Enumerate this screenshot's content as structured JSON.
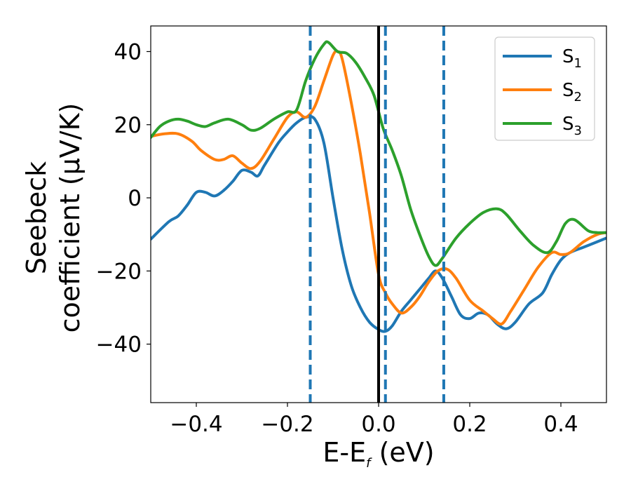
{
  "chart_data": {
    "type": "line",
    "xlabel": {
      "main": "E-E",
      "sub": "f",
      "unit": " (eV)"
    },
    "ylabel": {
      "line1": "Seebeck",
      "line2": "coefficient  (μV/K)"
    },
    "xlim": [
      -0.5,
      0.5
    ],
    "ylim": [
      -56,
      47
    ],
    "xticks": [
      -0.4,
      -0.2,
      0.0,
      0.2,
      0.4
    ],
    "xtick_labels": [
      "−0.4",
      "−0.2",
      "0.0",
      "0.2",
      "0.4"
    ],
    "yticks": [
      -40,
      -20,
      0,
      20,
      40
    ],
    "ytick_labels": [
      "−40",
      "−20",
      "0",
      "20",
      "40"
    ],
    "grid": false,
    "legend_position": "top-right",
    "reference_lines": {
      "solid_black_x": 0.0,
      "dashed_blue_x": [
        -0.15,
        0.015,
        0.143
      ]
    },
    "series": [
      {
        "name": "S",
        "subscript": "1",
        "color": "#1f77b4",
        "points": [
          [
            -0.5,
            -11.3
          ],
          [
            -0.46,
            -6.5
          ],
          [
            -0.44,
            -5
          ],
          [
            -0.42,
            -2
          ],
          [
            -0.4,
            1.5
          ],
          [
            -0.38,
            1.5
          ],
          [
            -0.36,
            0.5
          ],
          [
            -0.34,
            2
          ],
          [
            -0.32,
            4.5
          ],
          [
            -0.3,
            7.5
          ],
          [
            -0.28,
            7
          ],
          [
            -0.265,
            6
          ],
          [
            -0.25,
            9
          ],
          [
            -0.22,
            15
          ],
          [
            -0.2,
            18
          ],
          [
            -0.18,
            20.5
          ],
          [
            -0.16,
            22
          ],
          [
            -0.14,
            21.5
          ],
          [
            -0.12,
            15
          ],
          [
            -0.1,
            0
          ],
          [
            -0.08,
            -14
          ],
          [
            -0.06,
            -24
          ],
          [
            -0.04,
            -30
          ],
          [
            -0.02,
            -34
          ],
          [
            0,
            -36
          ],
          [
            0.015,
            -36.5
          ],
          [
            0.03,
            -35
          ],
          [
            0.05,
            -31
          ],
          [
            0.07,
            -28
          ],
          [
            0.09,
            -25
          ],
          [
            0.11,
            -22
          ],
          [
            0.125,
            -20
          ],
          [
            0.14,
            -22
          ],
          [
            0.16,
            -27
          ],
          [
            0.18,
            -32
          ],
          [
            0.2,
            -33
          ],
          [
            0.22,
            -31.5
          ],
          [
            0.24,
            -32
          ],
          [
            0.26,
            -34.5
          ],
          [
            0.28,
            -35.8
          ],
          [
            0.3,
            -34
          ],
          [
            0.33,
            -29
          ],
          [
            0.36,
            -26
          ],
          [
            0.38,
            -21
          ],
          [
            0.4,
            -17
          ],
          [
            0.42,
            -15
          ],
          [
            0.45,
            -13.5
          ],
          [
            0.48,
            -12
          ],
          [
            0.5,
            -11
          ]
        ]
      },
      {
        "name": "S",
        "subscript": "2",
        "color": "#ff7f0e",
        "points": [
          [
            -0.5,
            16.8
          ],
          [
            -0.47,
            17.5
          ],
          [
            -0.44,
            17.5
          ],
          [
            -0.41,
            15.5
          ],
          [
            -0.39,
            13
          ],
          [
            -0.36,
            10.5
          ],
          [
            -0.34,
            10.5
          ],
          [
            -0.32,
            11.5
          ],
          [
            -0.3,
            9.5
          ],
          [
            -0.28,
            8
          ],
          [
            -0.26,
            10
          ],
          [
            -0.23,
            16
          ],
          [
            -0.2,
            22
          ],
          [
            -0.18,
            23.5
          ],
          [
            -0.16,
            22
          ],
          [
            -0.14,
            25
          ],
          [
            -0.12,
            32
          ],
          [
            -0.1,
            39
          ],
          [
            -0.09,
            40
          ],
          [
            -0.08,
            38
          ],
          [
            -0.06,
            26
          ],
          [
            -0.04,
            12
          ],
          [
            -0.02,
            -4
          ],
          [
            0,
            -21
          ],
          [
            0.015,
            -26
          ],
          [
            0.03,
            -29
          ],
          [
            0.05,
            -31.5
          ],
          [
            0.07,
            -30
          ],
          [
            0.09,
            -27
          ],
          [
            0.11,
            -23
          ],
          [
            0.13,
            -20
          ],
          [
            0.15,
            -19.5
          ],
          [
            0.17,
            -22
          ],
          [
            0.2,
            -28
          ],
          [
            0.23,
            -31
          ],
          [
            0.25,
            -33
          ],
          [
            0.27,
            -34.5
          ],
          [
            0.29,
            -31
          ],
          [
            0.32,
            -25
          ],
          [
            0.35,
            -19
          ],
          [
            0.38,
            -15
          ],
          [
            0.4,
            -15.5
          ],
          [
            0.42,
            -15
          ],
          [
            0.45,
            -12
          ],
          [
            0.48,
            -10
          ],
          [
            0.5,
            -9.5
          ]
        ]
      },
      {
        "name": "S",
        "subscript": "3",
        "color": "#2ca02c",
        "points": [
          [
            -0.5,
            16.5
          ],
          [
            -0.48,
            19.5
          ],
          [
            -0.46,
            21
          ],
          [
            -0.44,
            21.5
          ],
          [
            -0.42,
            21
          ],
          [
            -0.4,
            20
          ],
          [
            -0.38,
            19.5
          ],
          [
            -0.36,
            20.5
          ],
          [
            -0.33,
            21.5
          ],
          [
            -0.3,
            20
          ],
          [
            -0.28,
            18.5
          ],
          [
            -0.26,
            19
          ],
          [
            -0.23,
            21.5
          ],
          [
            -0.2,
            23.5
          ],
          [
            -0.18,
            24
          ],
          [
            -0.16,
            32
          ],
          [
            -0.14,
            38
          ],
          [
            -0.12,
            42
          ],
          [
            -0.11,
            42.5
          ],
          [
            -0.09,
            40
          ],
          [
            -0.07,
            39.5
          ],
          [
            -0.05,
            37
          ],
          [
            -0.03,
            33
          ],
          [
            -0.01,
            28
          ],
          [
            0.01,
            19
          ],
          [
            0.03,
            13
          ],
          [
            0.05,
            6
          ],
          [
            0.07,
            -3
          ],
          [
            0.09,
            -10
          ],
          [
            0.11,
            -16
          ],
          [
            0.125,
            -18.5
          ],
          [
            0.14,
            -16.5
          ],
          [
            0.17,
            -11
          ],
          [
            0.2,
            -7
          ],
          [
            0.23,
            -4
          ],
          [
            0.26,
            -3
          ],
          [
            0.28,
            -4.5
          ],
          [
            0.31,
            -9
          ],
          [
            0.34,
            -13
          ],
          [
            0.37,
            -15
          ],
          [
            0.39,
            -12
          ],
          [
            0.41,
            -7
          ],
          [
            0.43,
            -6
          ],
          [
            0.46,
            -9
          ],
          [
            0.48,
            -9.5
          ],
          [
            0.5,
            -9.5
          ]
        ]
      }
    ]
  }
}
